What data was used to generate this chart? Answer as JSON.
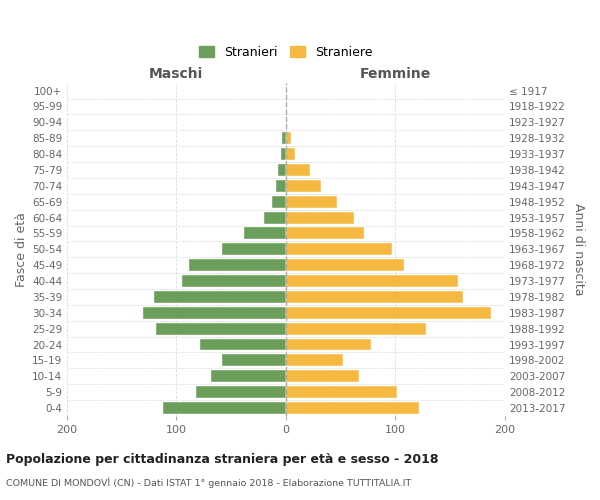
{
  "age_groups": [
    "100+",
    "95-99",
    "90-94",
    "85-89",
    "80-84",
    "75-79",
    "70-74",
    "65-69",
    "60-64",
    "55-59",
    "50-54",
    "45-49",
    "40-44",
    "35-39",
    "30-34",
    "25-29",
    "20-24",
    "15-19",
    "10-14",
    "5-9",
    "0-4"
  ],
  "birth_years": [
    "≤ 1917",
    "1918-1922",
    "1923-1927",
    "1928-1932",
    "1933-1937",
    "1938-1942",
    "1943-1947",
    "1948-1952",
    "1953-1957",
    "1958-1962",
    "1963-1967",
    "1968-1972",
    "1973-1977",
    "1978-1982",
    "1983-1987",
    "1988-1992",
    "1993-1997",
    "1998-2002",
    "2003-2007",
    "2008-2012",
    "2013-2017"
  ],
  "males": [
    0,
    0,
    0,
    3,
    4,
    7,
    9,
    12,
    20,
    38,
    58,
    88,
    95,
    120,
    130,
    118,
    78,
    58,
    68,
    82,
    112
  ],
  "females": [
    0,
    0,
    0,
    5,
    9,
    22,
    32,
    47,
    62,
    72,
    97,
    108,
    157,
    162,
    188,
    128,
    78,
    52,
    67,
    102,
    122
  ],
  "male_color": "#6a9e5a",
  "female_color": "#f5b942",
  "grid_color": "#dddddd",
  "title": "Popolazione per cittadinanza straniera per età e sesso - 2018",
  "subtitle": "COMUNE DI MONDOVÌ (CN) - Dati ISTAT 1° gennaio 2018 - Elaborazione TUTTITALIA.IT",
  "ylabel_left": "Fasce di età",
  "ylabel_right": "Anni di nascita",
  "xlabel_left": "Maschi",
  "xlabel_right": "Femmine",
  "legend_stranieri": "Stranieri",
  "legend_straniere": "Straniere",
  "xlim": 200
}
